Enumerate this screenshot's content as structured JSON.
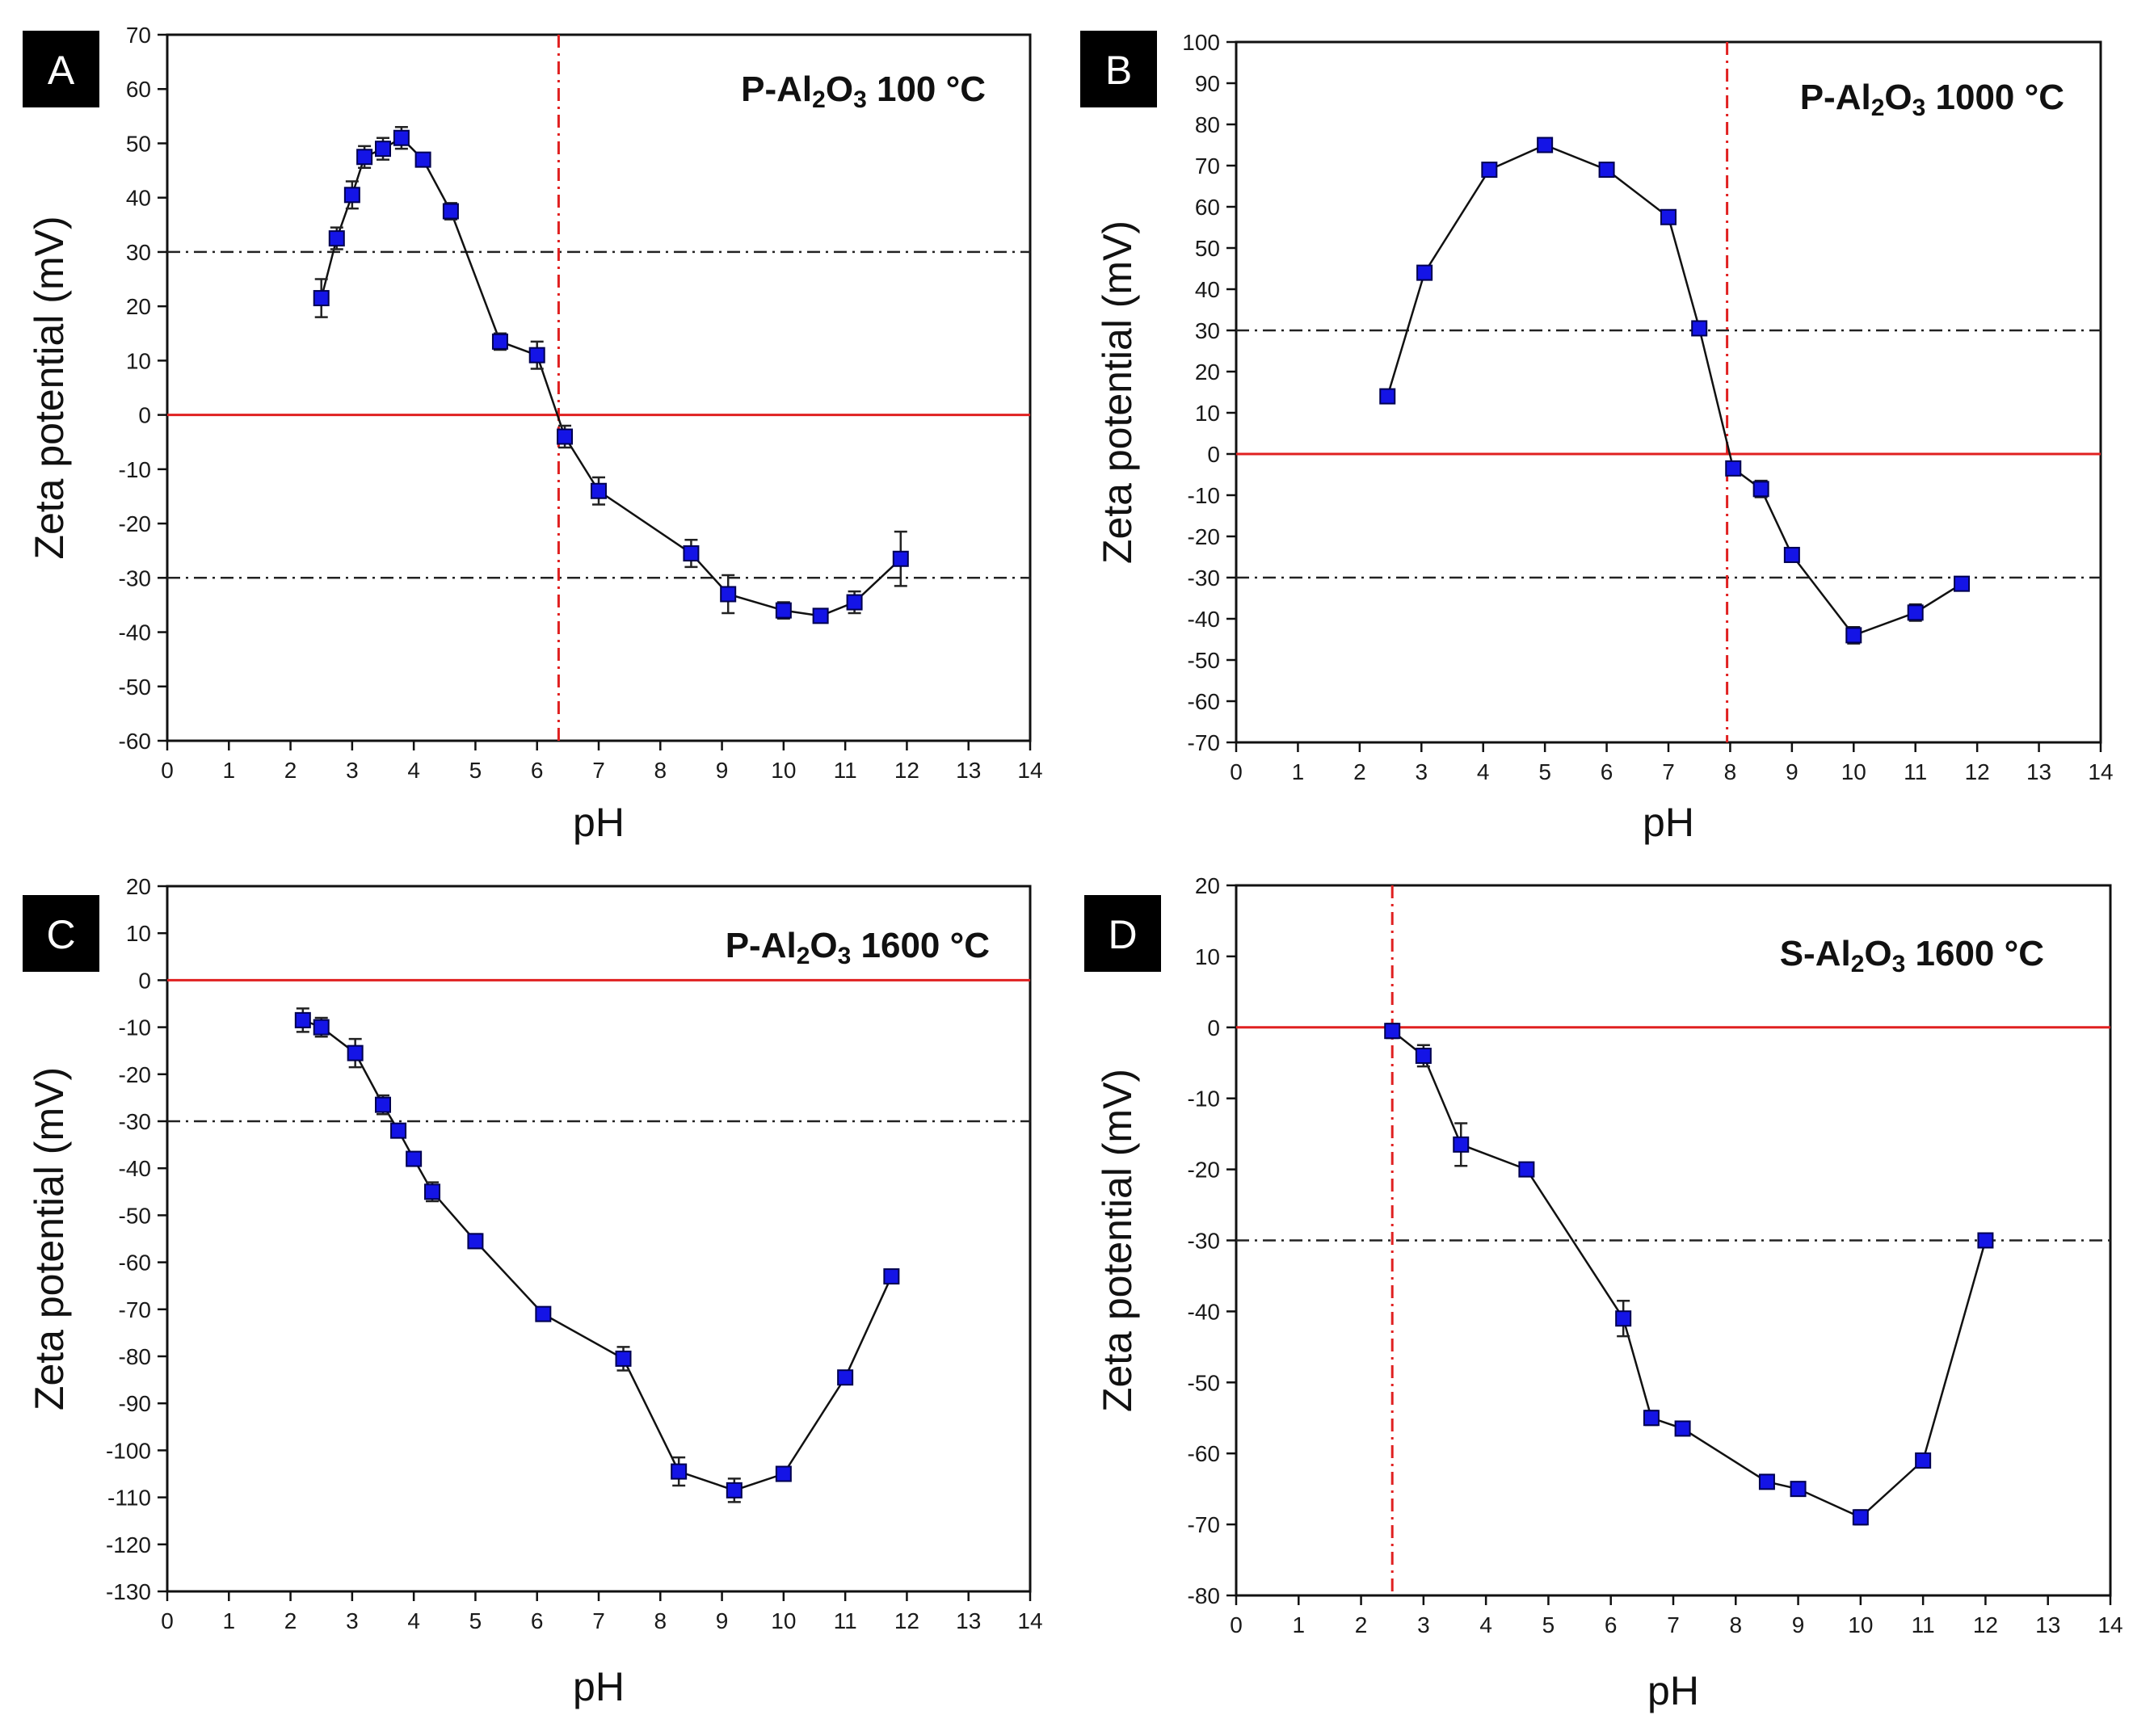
{
  "colors": {
    "marker": "#1414e6",
    "marker_edge": "#000050",
    "line": "#111111",
    "zero_line": "#e02020",
    "iep_line": "#e02020",
    "threshold_line": "#222222",
    "badge_bg": "#000000",
    "badge_text": "#ffffff"
  },
  "chart_data": [
    {
      "type": "line",
      "panel": "A",
      "title": "P-Al2O3 100 °C",
      "title_parts": [
        "P-Al",
        "2",
        "O",
        "3",
        " 100 °C"
      ],
      "xlabel": "pH",
      "ylabel": "Zeta potential (mV)",
      "xlim": [
        0,
        14
      ],
      "ylim": [
        -60,
        70
      ],
      "xticks": [
        0,
        1,
        2,
        3,
        4,
        5,
        6,
        7,
        8,
        9,
        10,
        11,
        12,
        13,
        14
      ],
      "yticks": [
        70,
        60,
        50,
        40,
        30,
        20,
        10,
        0,
        -10,
        -20,
        -30,
        -40,
        -50,
        -60
      ],
      "threshold_lines": [
        30,
        -30
      ],
      "zero_line": 0,
      "iep_x": 6.35,
      "x": [
        2.5,
        2.75,
        3.0,
        3.2,
        3.5,
        3.8,
        4.15,
        4.6,
        5.4,
        6.0,
        6.45,
        7.0,
        8.5,
        9.1,
        10.0,
        10.6,
        11.15,
        11.9
      ],
      "y": [
        21.5,
        32.5,
        40.5,
        47.5,
        49,
        51,
        47,
        37.5,
        13.5,
        11,
        -4,
        -14,
        -25.5,
        -33,
        -36,
        -37,
        -34.5,
        -26.5
      ],
      "yerr": [
        3.5,
        2,
        2.5,
        2,
        2,
        2,
        1,
        1.5,
        1.5,
        2.5,
        2,
        2.5,
        2.5,
        3.5,
        1.5,
        1,
        2,
        5
      ]
    },
    {
      "type": "line",
      "panel": "B",
      "title": "P-Al2O3 1000 °C",
      "title_parts": [
        "P-Al",
        "2",
        "O",
        "3",
        " 1000 °C"
      ],
      "xlabel": "pH",
      "ylabel": "Zeta potential (mV)",
      "xlim": [
        0,
        14
      ],
      "ylim": [
        -70,
        100
      ],
      "xticks": [
        0,
        1,
        2,
        3,
        4,
        5,
        6,
        7,
        8,
        9,
        10,
        11,
        12,
        13,
        14
      ],
      "yticks": [
        100,
        90,
        80,
        70,
        60,
        50,
        40,
        30,
        20,
        10,
        0,
        -10,
        -20,
        -30,
        -40,
        -50,
        -60,
        -70
      ],
      "threshold_lines": [
        30,
        -30
      ],
      "zero_line": 0,
      "iep_x": 7.95,
      "x": [
        2.45,
        3.05,
        4.1,
        5.0,
        6.0,
        7.0,
        7.5,
        8.05,
        8.5,
        9.0,
        10.0,
        11.0,
        11.75
      ],
      "y": [
        14,
        44,
        69,
        75,
        69,
        57.5,
        30.5,
        -3.5,
        -8.5,
        -24.5,
        -44,
        -38.5,
        -31.5
      ],
      "yerr": [
        0.5,
        0.5,
        1.5,
        0.5,
        0.5,
        0.5,
        0.5,
        1,
        2,
        0.5,
        2,
        2,
        0.5
      ]
    },
    {
      "type": "line",
      "panel": "C",
      "title": "P-Al2O3 1600 °C",
      "title_parts": [
        "P-Al",
        "2",
        "O",
        "3",
        " 1600 °C"
      ],
      "xlabel": "pH",
      "ylabel": "Zeta potential (mV)",
      "xlim": [
        0,
        14
      ],
      "ylim": [
        -130,
        20
      ],
      "xticks": [
        0,
        1,
        2,
        3,
        4,
        5,
        6,
        7,
        8,
        9,
        10,
        11,
        12,
        13,
        14
      ],
      "yticks": [
        20,
        10,
        0,
        -10,
        -20,
        -30,
        -40,
        -50,
        -60,
        -70,
        -80,
        -90,
        -100,
        -110,
        -120,
        -130
      ],
      "threshold_lines": [
        -30
      ],
      "zero_line": 0,
      "iep_x": null,
      "x": [
        2.2,
        2.5,
        3.05,
        3.5,
        3.75,
        4.0,
        4.3,
        5.0,
        6.1,
        7.4,
        8.3,
        9.2,
        10.0,
        11.0,
        11.75
      ],
      "y": [
        -8.5,
        -10,
        -15.5,
        -26.5,
        -32,
        -38,
        -45,
        -55.5,
        -71,
        -80.5,
        -104.5,
        -108.5,
        -105,
        -84.5,
        -63
      ],
      "yerr": [
        2.5,
        2,
        3,
        2,
        1,
        1,
        2,
        1.5,
        0.5,
        2.5,
        3,
        2.5,
        1,
        0.5,
        0.5
      ]
    },
    {
      "type": "line",
      "panel": "D",
      "title": "S-Al2O3 1600 °C",
      "title_parts": [
        "S-Al",
        "2",
        "O",
        "3",
        " 1600 °C"
      ],
      "xlabel": "pH",
      "ylabel": "Zeta potential (mV)",
      "xlim": [
        0,
        14
      ],
      "ylim": [
        -80,
        20
      ],
      "xticks": [
        0,
        1,
        2,
        3,
        4,
        5,
        6,
        7,
        8,
        9,
        10,
        11,
        12,
        13,
        14
      ],
      "yticks": [
        20,
        10,
        0,
        -10,
        -20,
        -30,
        -40,
        -50,
        -60,
        -70,
        -80
      ],
      "threshold_lines": [
        -30
      ],
      "zero_line": 0,
      "iep_x": 2.5,
      "x": [
        2.5,
        3.0,
        3.6,
        4.65,
        6.2,
        6.65,
        7.15,
        8.5,
        9.0,
        10.0,
        11.0,
        12.0
      ],
      "y": [
        -0.5,
        -4,
        -16.5,
        -20,
        -41,
        -55,
        -56.5,
        -64,
        -65,
        -69,
        -61,
        -30
      ],
      "yerr": [
        1,
        1.5,
        3,
        0.5,
        2.5,
        1,
        0.5,
        0.5,
        0.5,
        1,
        1,
        0.5
      ]
    }
  ]
}
